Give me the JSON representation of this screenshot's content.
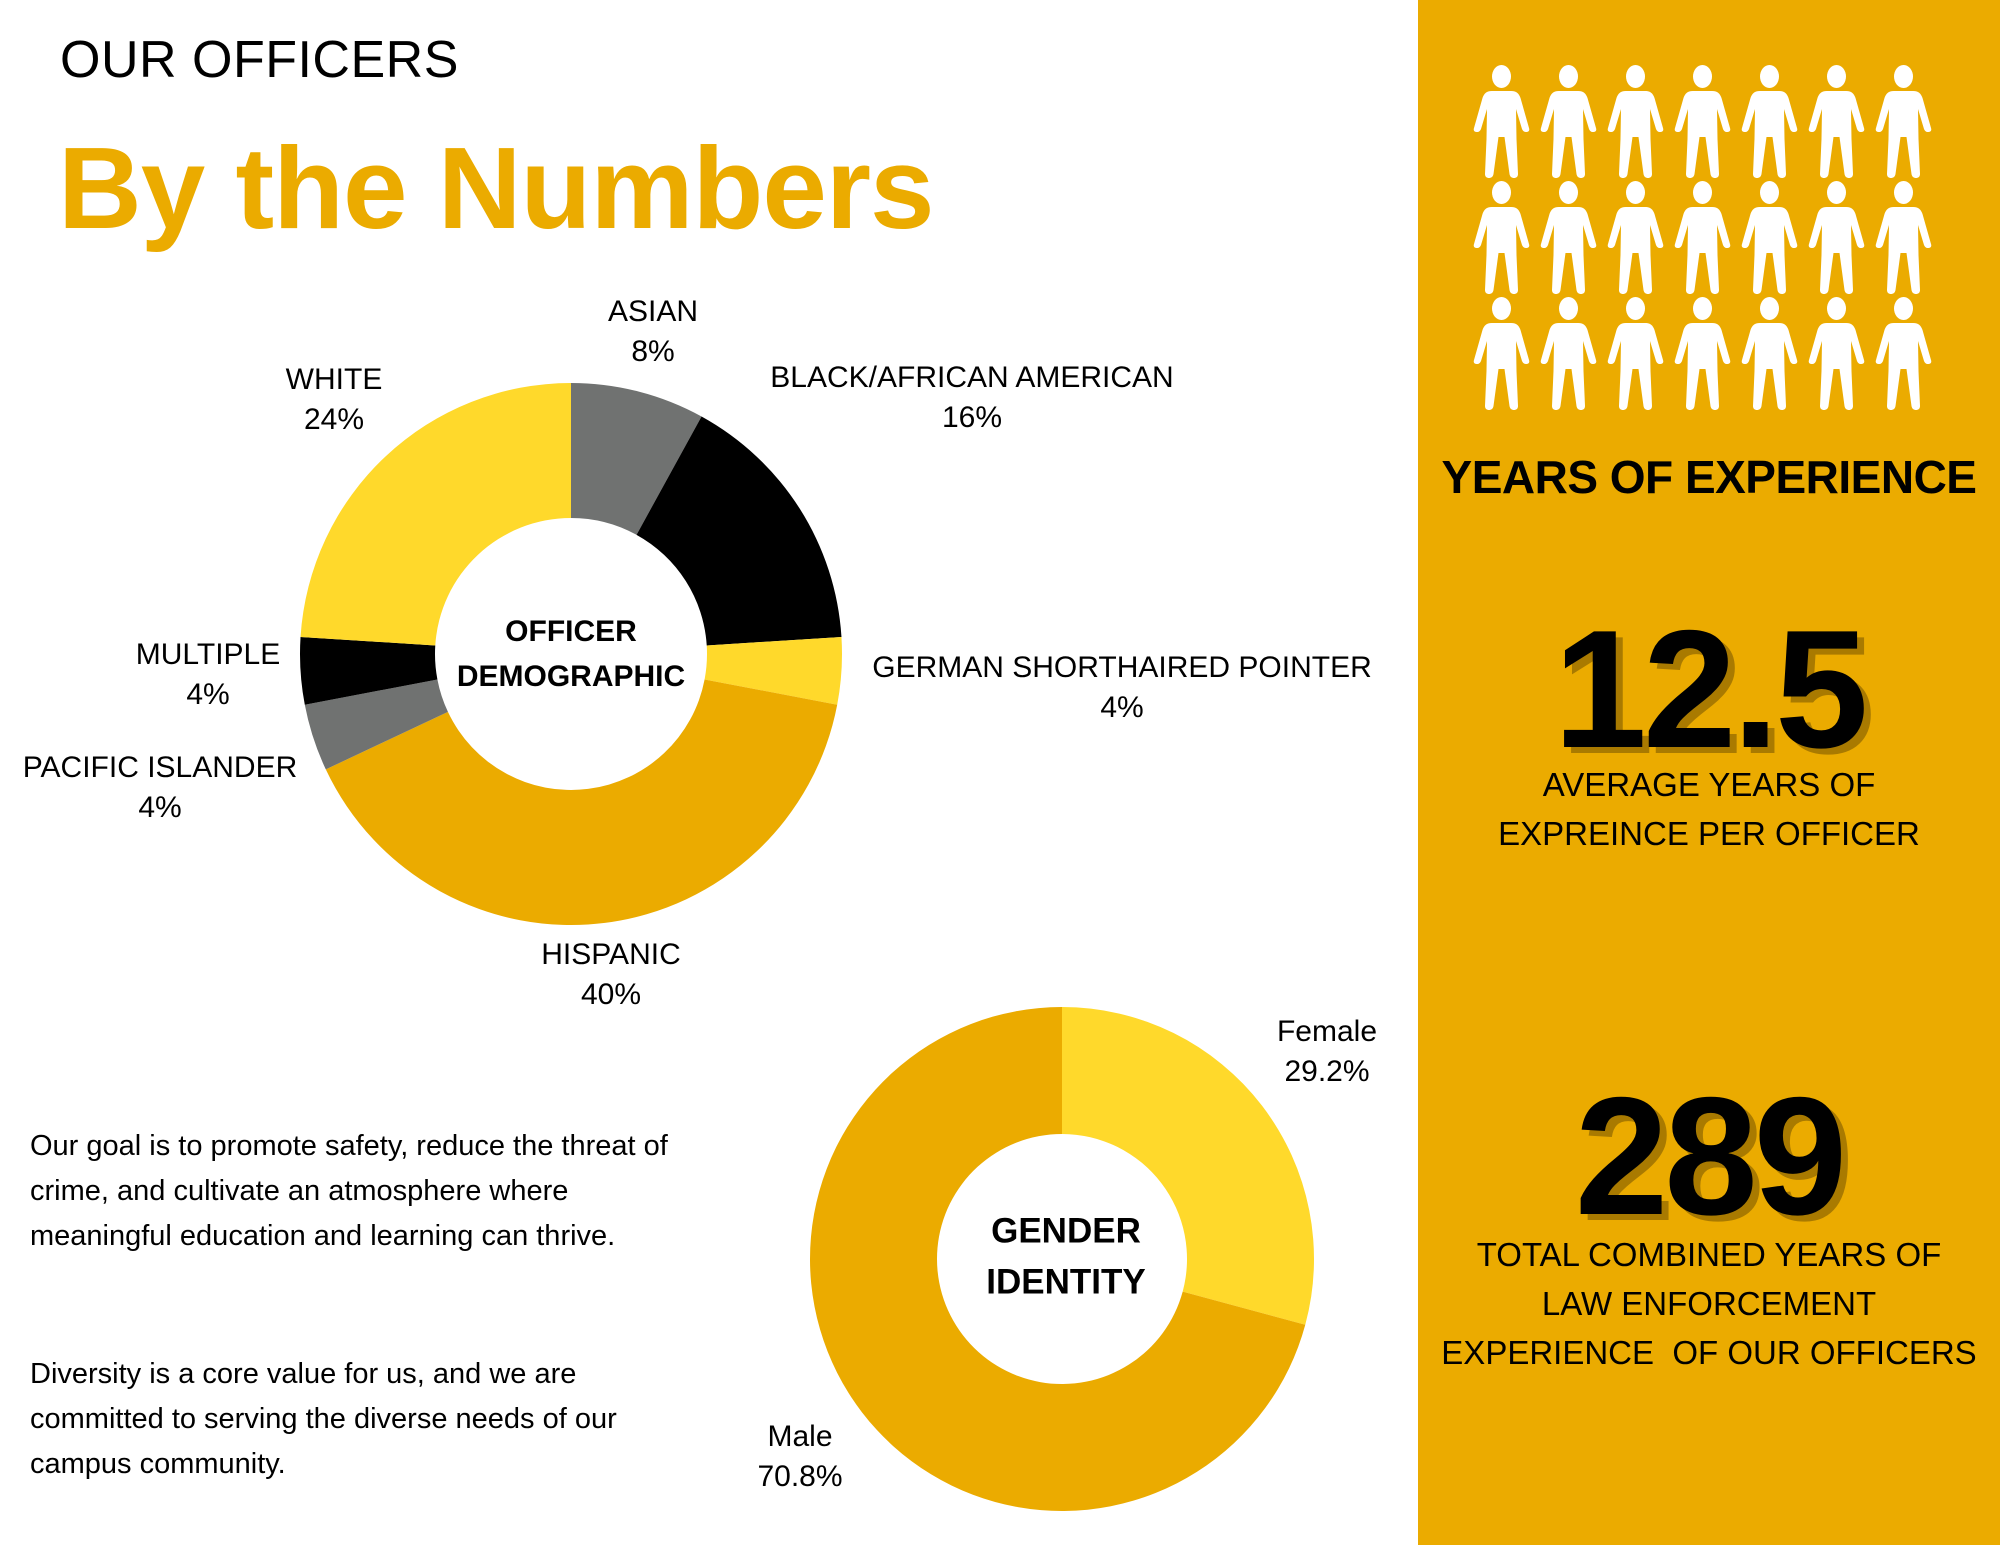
{
  "header": {
    "eyebrow": "OUR OFFICERS",
    "title": "By the Numbers"
  },
  "colors": {
    "gold": "#EBAB00",
    "bright_yellow": "#FFD92B",
    "gray": "#707271",
    "black": "#000000",
    "shadow": "#A97A00",
    "white": "#FFFFFF"
  },
  "chart_data": [
    {
      "type": "pie",
      "donut": true,
      "title": "OFFICER DEMOGRAPHIC",
      "center_label": [
        "OFFICER",
        "DEMOGRAPHIC"
      ],
      "start_angle_deg": 0,
      "direction": "clockwise",
      "categories": [
        "ASIAN",
        "BLACK/AFRICAN AMERICAN",
        "GERMAN SHORTHAIRED POINTER",
        "HISPANIC",
        "PACIFIC ISLANDER",
        "MULTIPLE",
        "WHITE"
      ],
      "values": [
        8,
        16,
        4,
        40,
        4,
        4,
        24
      ],
      "value_labels": [
        "8%",
        "16%",
        "4%",
        "40%",
        "4%",
        "4%",
        "24%"
      ],
      "colors": [
        "#707271",
        "#000000",
        "#FFD92B",
        "#EBAB00",
        "#707271",
        "#000000",
        "#FFD92B"
      ],
      "unit": "%"
    },
    {
      "type": "pie",
      "donut": true,
      "title": "GENDER IDENTITY",
      "center_label": [
        "GENDER",
        "IDENTITY"
      ],
      "start_angle_deg": 0,
      "direction": "clockwise",
      "categories": [
        "Female",
        "Male"
      ],
      "values": [
        29.2,
        70.8
      ],
      "value_labels": [
        "29.2%",
        "70.8%"
      ],
      "colors": [
        "#FFD92B",
        "#EBAB00"
      ],
      "unit": "%"
    }
  ],
  "demographic_labels": [
    {
      "name": "ASIAN",
      "value": "8%"
    },
    {
      "name": "BLACK/AFRICAN AMERICAN",
      "value": "16%"
    },
    {
      "name": "GERMAN SHORTHAIRED POINTER",
      "value": "4%"
    },
    {
      "name": "HISPANIC",
      "value": "40%"
    },
    {
      "name": "PACIFIC ISLANDER",
      "value": "4%"
    },
    {
      "name": "MULTIPLE",
      "value": "4%"
    },
    {
      "name": "WHITE",
      "value": "24%"
    }
  ],
  "gender_labels": [
    {
      "name": "Female",
      "value": "29.2%"
    },
    {
      "name": "Male",
      "value": "70.8%"
    }
  ],
  "body_text": {
    "paragraph_1": "Our goal is to promote safety, reduce the threat of crime, and cultivate an atmosphere where meaningful education and learning can thrive.",
    "paragraph_2": "Diversity is a core value for us, and we are committed to serving the diverse needs of our campus community."
  },
  "experience_panel": {
    "icon": "person-icon",
    "icon_count": 21,
    "icon_rows": 3,
    "icon_columns": 7,
    "heading": "YEARS OF EXPERIENCE",
    "average": {
      "value": "12.5",
      "desc_line_1": "AVERAGE YEARS OF",
      "desc_line_2": "EXPREINCE PER OFFICER"
    },
    "total": {
      "value": "289",
      "desc_line_1": "TOTAL COMBINED YEARS OF",
      "desc_line_2": "LAW ENFORCEMENT",
      "desc_line_3": "EXPERIENCE  OF OUR OFFICERS"
    }
  }
}
